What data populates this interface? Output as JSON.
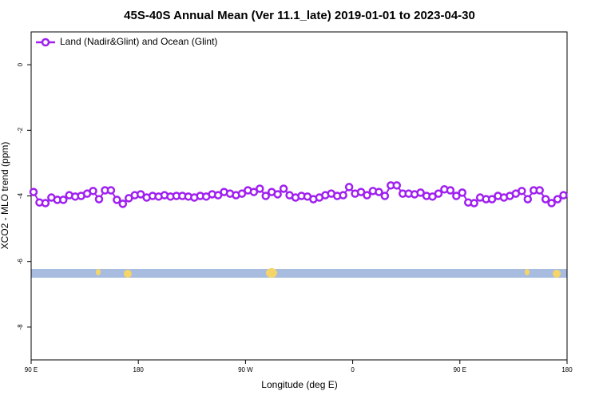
{
  "chart_data": {
    "type": "line",
    "title": "45S-40S Annual Mean (Ver 11.1_late)   2019-01-01 to 2023-04-30",
    "x_label": "Longitude (deg E)",
    "y_label": "XCO2 - MLO trend (ppm)",
    "xlim": [
      90,
      540
    ],
    "ylim": [
      -9,
      1
    ],
    "xticks": [
      {
        "value": 90,
        "label": "90 E"
      },
      180,
      {
        "value": 270,
        "label": "90 W"
      },
      {
        "value": 360,
        "label": "0"
      },
      {
        "value": 450,
        "label": "90 E"
      },
      {
        "value": 540,
        "label": "180"
      }
    ],
    "yticks": [
      0,
      -2,
      -4,
      -6,
      -8
    ],
    "legend": "top-left",
    "x": [
      92,
      97,
      102,
      107,
      112,
      117,
      122,
      127,
      132,
      137,
      142,
      147,
      152,
      157,
      162,
      167,
      172,
      177,
      182,
      187,
      192,
      197,
      202,
      207,
      212,
      217,
      222,
      227,
      232,
      237,
      242,
      247,
      252,
      257,
      262,
      267,
      272,
      277,
      282,
      287,
      292,
      297,
      302,
      307,
      312,
      317,
      322,
      327,
      332,
      337,
      342,
      347,
      352,
      357,
      362,
      367,
      372,
      377,
      382,
      387,
      392,
      397,
      402,
      407,
      412,
      417,
      422,
      427,
      432,
      437,
      442,
      447,
      452,
      457,
      462,
      467,
      472,
      477,
      482,
      487,
      492,
      497,
      502,
      507,
      512,
      517,
      522,
      527,
      532,
      537
    ],
    "series": [
      {
        "name": "Land (Nadir&Glint) and Ocean (Glint)",
        "color": "#a020f0",
        "values": [
          -3.88,
          -4.2,
          -4.22,
          -4.05,
          -4.12,
          -4.12,
          -3.98,
          -4.02,
          -4.0,
          -3.93,
          -3.85,
          -4.1,
          -3.83,
          -3.83,
          -4.12,
          -4.24,
          -4.07,
          -3.98,
          -3.95,
          -4.05,
          -4.0,
          -4.02,
          -3.98,
          -4.02,
          -4.0,
          -4.0,
          -4.02,
          -4.05,
          -4.0,
          -4.02,
          -3.95,
          -3.98,
          -3.88,
          -3.93,
          -3.98,
          -3.93,
          -3.83,
          -3.88,
          -3.78,
          -4.0,
          -3.88,
          -3.95,
          -3.78,
          -3.98,
          -4.05,
          -4.0,
          -4.02,
          -4.1,
          -4.05,
          -3.98,
          -3.93,
          -4.0,
          -3.98,
          -3.73,
          -3.93,
          -3.88,
          -3.98,
          -3.85,
          -3.88,
          -4.0,
          -3.68,
          -3.68,
          -3.93,
          -3.93,
          -3.95,
          -3.9,
          -4.0,
          -4.02,
          -3.93,
          -3.8,
          -3.83,
          -4.0,
          -3.9,
          -4.2,
          -4.22,
          -4.05,
          -4.1,
          -4.1,
          -4.0,
          -4.05,
          -4.0,
          -3.93,
          -3.85,
          -4.1,
          -3.83,
          -3.83,
          -4.1,
          -4.22,
          -4.1,
          -3.98
        ]
      }
    ]
  }
}
